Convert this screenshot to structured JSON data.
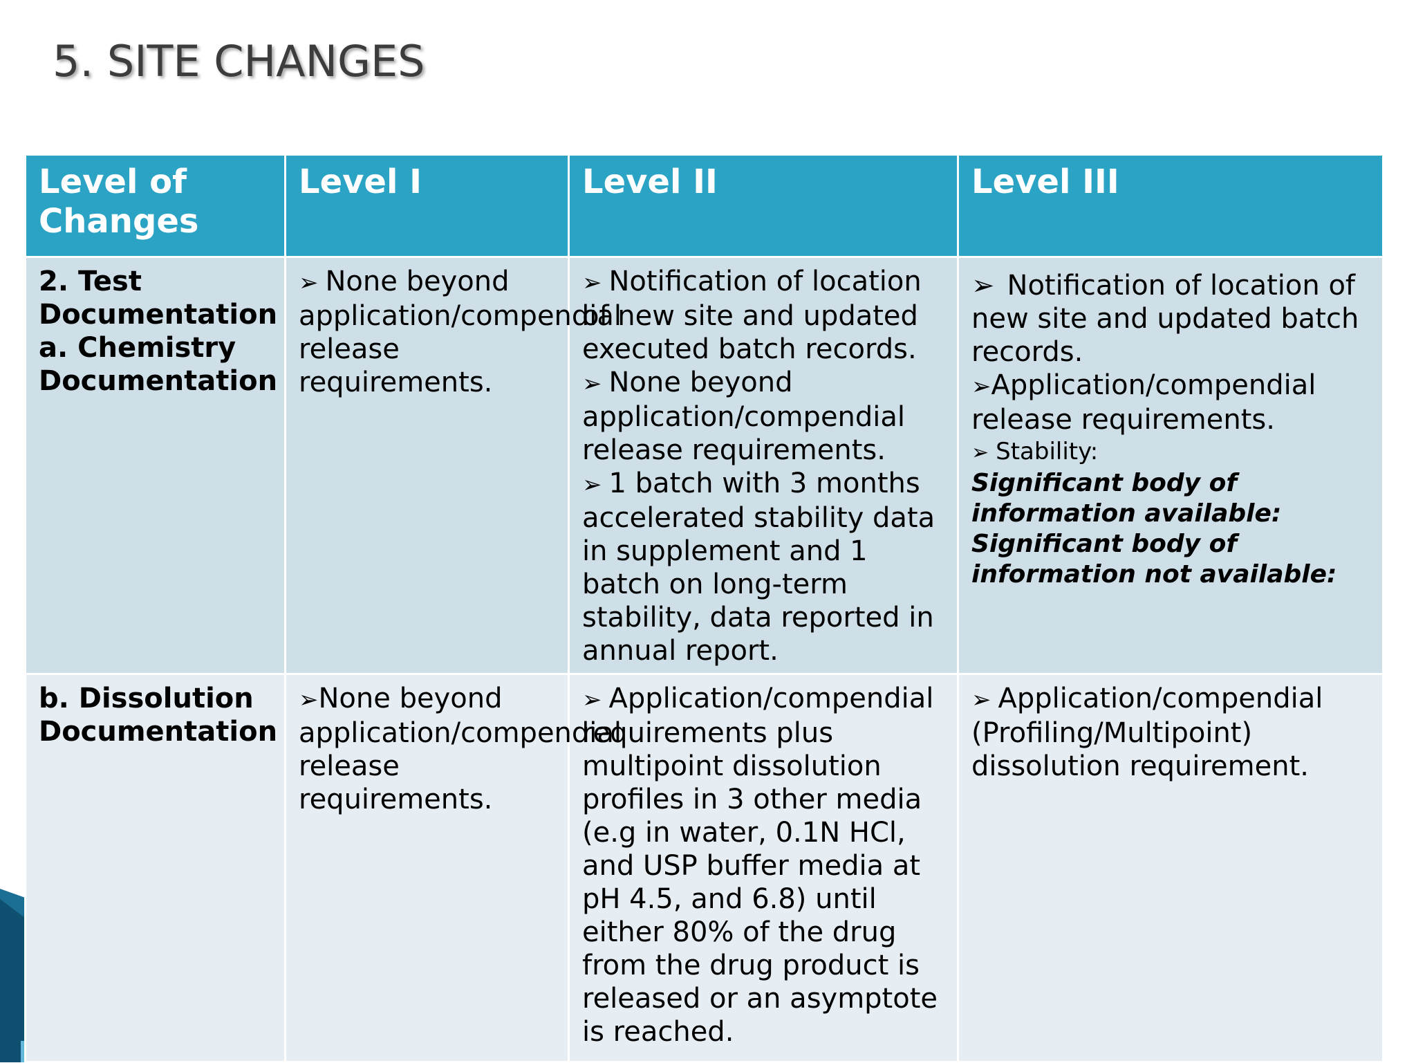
{
  "title": "5. SITE CHANGES",
  "table": {
    "headers": [
      "Level of Changes",
      "Level I",
      "Level II",
      "Level III"
    ],
    "row1": {
      "label_1": "2. Test",
      "label_2": "Documentation",
      "label_3": "a. Chemistry",
      "label_4": "Documentation",
      "level1": [
        "None beyond application/compendial release requirements."
      ],
      "level2": [
        "Notification of location of new site and updated executed batch records.",
        "None beyond application/compendial release requirements.",
        "1 batch with 3 months accelerated stability data in supplement and 1 batch on long-term stability, data reported in annual report."
      ],
      "level3": {
        "item1": "Notification of location of new site and updated batch records.",
        "item2": "Application/compendial release requirements.",
        "item3": "Stability:",
        "note1": "Significant body of information available:",
        "note2": "Significant body of information not available:"
      }
    },
    "row2": {
      "label_1": "b. Dissolution",
      "label_2": "Documentation",
      "level1": "None beyond application/compendial release requirements.",
      "level2": "Application/compendial requirements plus multipoint dissolution profiles in 3 other media (e.g in water, 0.1N HCl, and USP buffer media at pH 4.5, and 6.8) until either 80% of the drug from the drug product is released or an asymptote is reached.",
      "level3": "Application/compendial (Profiling/Multipoint) dissolution requirement."
    }
  },
  "colors": {
    "header": "#2ba3c4",
    "row_a": "#cfdfe7",
    "row_b": "#e7eef3",
    "accent_dark": "#0e2230",
    "accent_blue": "#3aa8cf"
  }
}
